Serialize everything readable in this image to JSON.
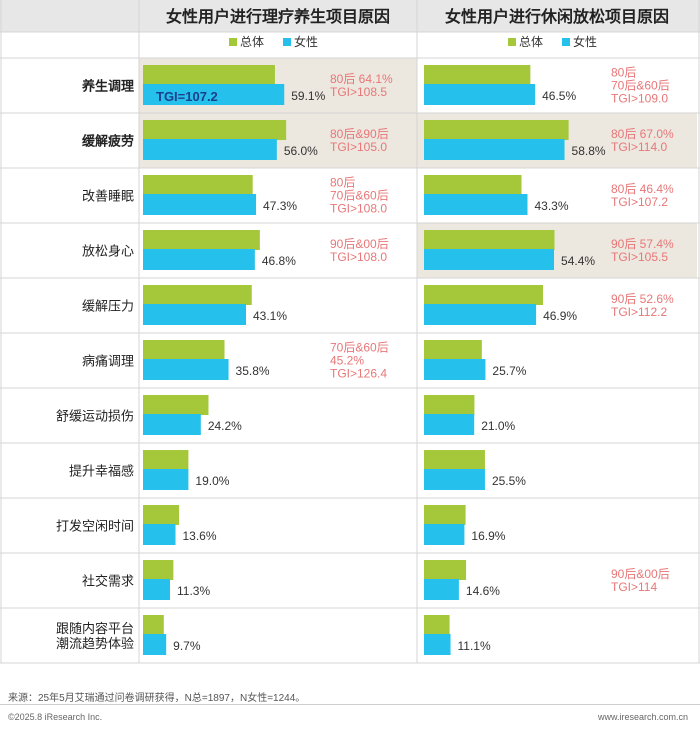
{
  "colors": {
    "overall": "#a4c83a",
    "female": "#25c1ec",
    "note": "#e87778",
    "highlight": "#ece7df",
    "grid": "#d6d6d6",
    "header_bg": "#e7e7e7",
    "tgi_text": "#1c3f8a"
  },
  "legend": {
    "overall": "总体",
    "female": "女性"
  },
  "categories": [
    "养生调理",
    "缓解疲劳",
    "改善睡眠",
    "放松身心",
    "缓解压力",
    "病痛调理",
    "舒缓运动损伤",
    "提升幸福感",
    "打发空闲时间",
    "社交需求",
    "跟随内容平台潮流趋势体验"
  ],
  "category_lines": [
    [
      "养生调理"
    ],
    [
      "缓解疲劳"
    ],
    [
      "改善睡眠"
    ],
    [
      "放松身心"
    ],
    [
      "缓解压力"
    ],
    [
      "病痛调理"
    ],
    [
      "舒缓运动损伤"
    ],
    [
      "提升幸福感"
    ],
    [
      "打发空闲时间"
    ],
    [
      "社交需求"
    ],
    [
      "跟随内容平台",
      "潮流趋势体验"
    ]
  ],
  "bold_categories": [
    0,
    1
  ],
  "chart_data": [
    {
      "type": "bar",
      "title": "女性用户进行理疗养生项目原因",
      "categories": [
        "养生调理",
        "缓解疲劳",
        "改善睡眠",
        "放松身心",
        "缓解压力",
        "病痛调理",
        "舒缓运动损伤",
        "提升幸福感",
        "打发空闲时间",
        "社交需求",
        "跟随内容平台潮流趋势体验"
      ],
      "series": [
        {
          "name": "总体",
          "values": [
            55.2,
            59.9,
            45.9,
            48.9,
            45.5,
            34.1,
            27.4,
            19.0,
            15.1,
            12.7,
            8.7
          ]
        },
        {
          "name": "女性",
          "values": [
            59.1,
            56.0,
            47.3,
            46.8,
            43.1,
            35.8,
            24.2,
            19.0,
            13.6,
            11.3,
            9.7
          ]
        }
      ],
      "data_labels": [
        "59.1%",
        "56.0%",
        "47.3%",
        "46.8%",
        "43.1%",
        "35.8%",
        "24.2%",
        "19.0%",
        "13.6%",
        "11.3%",
        "9.7%"
      ],
      "highlight_rows": [
        0,
        1
      ],
      "inline_label": {
        "row": 0,
        "text": "TGI=107.2"
      },
      "annotations": [
        {
          "row": 0,
          "lines": [
            "80后 64.1%",
            "TGI>108.5"
          ]
        },
        {
          "row": 1,
          "lines": [
            "80后&90后",
            "TGI>105.0"
          ]
        },
        {
          "row": 2,
          "lines": [
            "80后",
            "70后&60后",
            "TGI>108.0"
          ]
        },
        {
          "row": 3,
          "lines": [
            "90后&00后",
            "TGI>108.0"
          ]
        },
        {
          "row": 5,
          "lines": [
            "70后&60后",
            "45.2%",
            "TGI>126.4"
          ]
        }
      ],
      "xlim": [
        0,
        100
      ],
      "legend": "top-center"
    },
    {
      "type": "bar",
      "title": "女性用户进行休闲放松项目原因",
      "categories": [
        "养生调理",
        "缓解疲劳",
        "改善睡眠",
        "放松身心",
        "缓解压力",
        "病痛调理",
        "舒缓运动损伤",
        "提升幸福感",
        "打发空闲时间",
        "社交需求",
        "跟随内容平台潮流趋势体验"
      ],
      "series": [
        {
          "name": "总体",
          "values": [
            44.5,
            60.5,
            40.8,
            54.6,
            49.8,
            24.2,
            21.1,
            25.5,
            17.4,
            17.6,
            10.7
          ]
        },
        {
          "name": "女性",
          "values": [
            46.5,
            58.8,
            43.3,
            54.4,
            46.9,
            25.7,
            21.0,
            25.5,
            16.9,
            14.6,
            11.1
          ]
        }
      ],
      "data_labels": [
        "46.5%",
        "58.8%",
        "43.3%",
        "54.4%",
        "46.9%",
        "25.7%",
        "21.0%",
        "25.5%",
        "16.9%",
        "14.6%",
        "11.1%"
      ],
      "highlight_rows": [
        1,
        3
      ],
      "annotations": [
        {
          "row": 0,
          "lines": [
            "80后",
            "70后&60后",
            "TGI>109.0"
          ]
        },
        {
          "row": 1,
          "lines": [
            "80后 67.0%",
            "TGI>114.0"
          ]
        },
        {
          "row": 2,
          "lines": [
            "80后 46.4%",
            "TGI>107.2"
          ]
        },
        {
          "row": 3,
          "lines": [
            "90后 57.4%",
            "TGI>105.5"
          ]
        },
        {
          "row": 4,
          "lines": [
            "90后 52.6%",
            "TGI>112.2"
          ]
        },
        {
          "row": 9,
          "lines": [
            "90后&00后",
            "TGI>114"
          ]
        }
      ],
      "xlim": [
        0,
        100
      ],
      "legend": "top-center"
    }
  ],
  "footer": {
    "source": "来源：25年5月艾瑞通过问卷调研获得，N总=1897，N女性=1244。",
    "copyright": "©2025.8 iResearch Inc.",
    "url": "www.iresearch.com.cn"
  }
}
